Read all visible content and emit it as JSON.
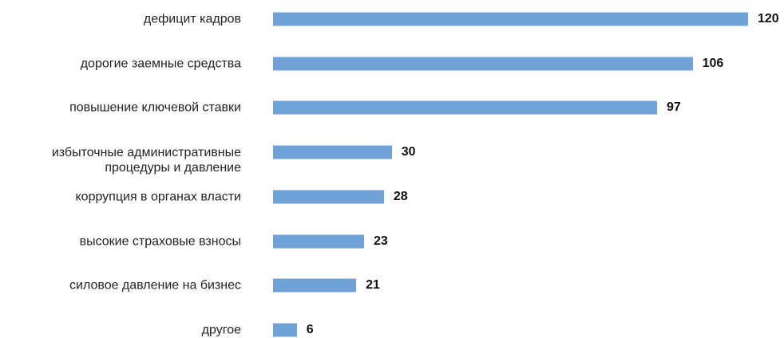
{
  "chart_data": {
    "type": "bar",
    "orientation": "horizontal",
    "categories": [
      "дефицит кадров",
      "дорогие заемные средства",
      "повышение ключевой ставки",
      "избыточные административные\nпроцедуры и давление",
      "коррупция в органах власти",
      "высокие страховые взносы",
      "силовое давление на бизнес",
      "другое"
    ],
    "values": [
      120,
      106,
      97,
      30,
      28,
      23,
      21,
      6
    ],
    "color": "#6fa3d8"
  }
}
